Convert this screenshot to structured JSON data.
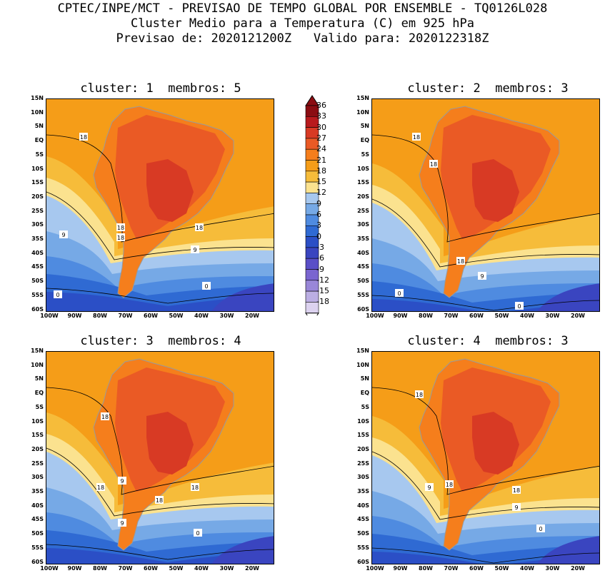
{
  "header": {
    "line1": "CPTEC/INPE/MCT - PREVISAO DE TEMPO GLOBAL POR ENSEMBLE - TQ0126L028",
    "line2": "Cluster Medio para a Temperatura (C) em 925 hPa",
    "line3": "Previsao de: 2020121200Z   Valido para: 2020122318Z"
  },
  "panels": [
    {
      "title": "cluster: 1  membros: 5",
      "labels": [
        "18",
        "9",
        "18",
        "18",
        "9",
        "0",
        "0",
        "18"
      ]
    },
    {
      "title": "cluster: 2  membros: 3",
      "labels": [
        "18",
        "18",
        "18",
        "9",
        "0",
        "0"
      ]
    },
    {
      "title": "cluster: 3  membros: 4",
      "labels": [
        "18",
        "18",
        "9",
        "18",
        "9",
        "0",
        "18"
      ]
    },
    {
      "title": "cluster: 4  membros: 3",
      "labels": [
        "18",
        "9",
        "18",
        "18",
        "9",
        "0"
      ]
    }
  ],
  "lat_ticks": [
    "15N",
    "10N",
    "5N",
    "EQ",
    "5S",
    "10S",
    "15S",
    "20S",
    "25S",
    "30S",
    "35S",
    "40S",
    "45S",
    "50S",
    "55S",
    "60S"
  ],
  "lon_ticks": [
    "100W",
    "90W",
    "80W",
    "70W",
    "60W",
    "50W",
    "40W",
    "30W",
    "20W"
  ],
  "colorbar": {
    "labels": [
      "36",
      "33",
      "30",
      "27",
      "24",
      "21",
      "18",
      "15",
      "12",
      "9",
      "6",
      "3",
      "0",
      "-3",
      "-6",
      "-9",
      "-12",
      "-15",
      "-18"
    ],
    "colors": [
      "#8b0d12",
      "#b81a1d",
      "#d83a24",
      "#ea5a25",
      "#f57e1c",
      "#f59d18",
      "#f6bc3a",
      "#fbe28f",
      "#a7c8ef",
      "#76a9e6",
      "#4f8be0",
      "#2f6ad3",
      "#2b4fc6",
      "#3a45c0",
      "#5a4fc7",
      "#7a65d0",
      "#9987d8",
      "#bbaee3",
      "#dcd2ef"
    ]
  },
  "icons": {
    "colorbar_top": "triangle-up-icon",
    "colorbar_bottom": "triangle-down-icon"
  }
}
